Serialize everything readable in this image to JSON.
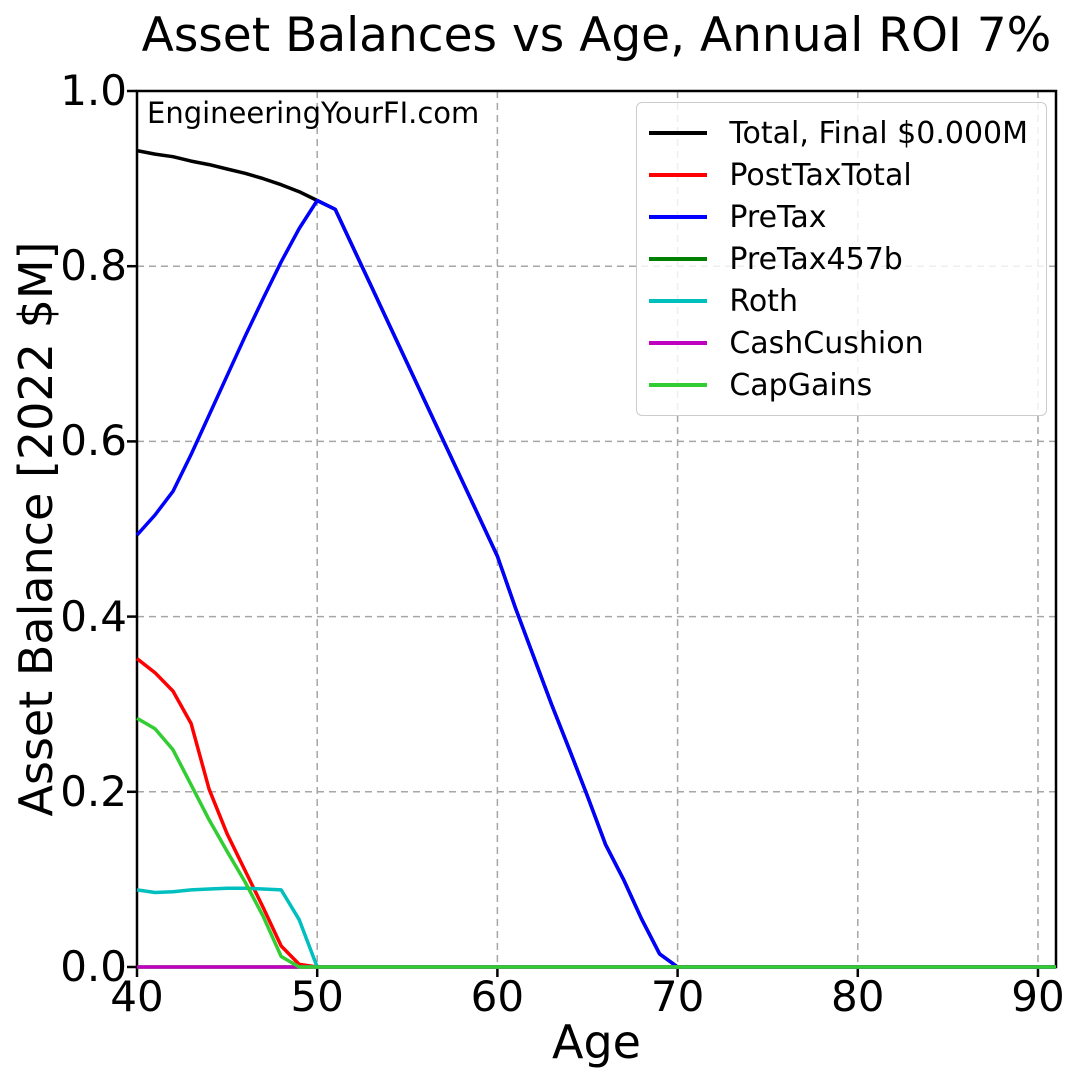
{
  "title": "Asset Balances vs Age, Annual ROI 7%",
  "watermark": "EngineeringYourFI.com",
  "chart_data": {
    "type": "line",
    "title": "Asset Balances vs Age, Annual ROI 7%",
    "xlabel": "Age",
    "ylabel": "Asset Balance [2022 $M]",
    "xlim": [
      40,
      91
    ],
    "ylim": [
      0,
      1.0
    ],
    "xticks": [
      40,
      50,
      60,
      70,
      80,
      90
    ],
    "yticks": [
      0.0,
      0.2,
      0.4,
      0.6,
      0.8,
      1.0
    ],
    "grid": "dashed",
    "grid_color": "#a6a6a6",
    "axis_color": "#000000",
    "legend_position": "upper right",
    "x": [
      40,
      41,
      42,
      43,
      44,
      45,
      46,
      47,
      48,
      49,
      50,
      51,
      52,
      53,
      54,
      55,
      56,
      57,
      58,
      59,
      60,
      61,
      62,
      63,
      64,
      65,
      66,
      67,
      68,
      69,
      70,
      71,
      72,
      73,
      74,
      75,
      76,
      77,
      78,
      79,
      80,
      81,
      82,
      83,
      84,
      85,
      86,
      87,
      88,
      89,
      90,
      91
    ],
    "series": [
      {
        "name": "Total",
        "label": "Total, Final $0.000M",
        "color": "#000000",
        "values": [
          0.932,
          0.928,
          0.925,
          0.92,
          0.916,
          0.911,
          0.906,
          0.9,
          0.893,
          0.885,
          0.875,
          0.865,
          0.821,
          0.777,
          0.733,
          0.689,
          0.645,
          0.601,
          0.557,
          0.513,
          0.469,
          0.41,
          0.355,
          0.3,
          0.248,
          0.195,
          0.14,
          0.1,
          0.055,
          0.015,
          0,
          0,
          0,
          0,
          0,
          0,
          0,
          0,
          0,
          0,
          0,
          0,
          0,
          0,
          0,
          0,
          0,
          0,
          0,
          0,
          0,
          0
        ]
      },
      {
        "name": "PostTaxTotal",
        "label": "PostTaxTotal",
        "color": "#ff0000",
        "values": [
          0.352,
          0.336,
          0.315,
          0.278,
          0.203,
          0.152,
          0.11,
          0.068,
          0.024,
          0.003,
          0,
          0,
          0,
          0,
          0,
          0,
          0,
          0,
          0,
          0,
          0,
          0,
          0,
          0,
          0,
          0,
          0,
          0,
          0,
          0,
          0,
          0,
          0,
          0,
          0,
          0,
          0,
          0,
          0,
          0,
          0,
          0,
          0,
          0,
          0,
          0,
          0,
          0,
          0,
          0,
          0,
          0
        ]
      },
      {
        "name": "PreTax",
        "label": "PreTax",
        "color": "#0000ff",
        "values": [
          0.493,
          0.516,
          0.543,
          0.585,
          0.63,
          0.675,
          0.72,
          0.763,
          0.805,
          0.843,
          0.875,
          0.865,
          0.821,
          0.777,
          0.733,
          0.689,
          0.645,
          0.601,
          0.557,
          0.513,
          0.469,
          0.41,
          0.355,
          0.3,
          0.248,
          0.195,
          0.14,
          0.1,
          0.055,
          0.015,
          0,
          0,
          0,
          0,
          0,
          0,
          0,
          0,
          0,
          0,
          0,
          0,
          0,
          0,
          0,
          0,
          0,
          0,
          0,
          0,
          0,
          0
        ]
      },
      {
        "name": "PreTax457b",
        "label": "PreTax457b",
        "color": "#008000",
        "values": [
          0,
          0,
          0,
          0,
          0,
          0,
          0,
          0,
          0,
          0,
          0,
          0,
          0,
          0,
          0,
          0,
          0,
          0,
          0,
          0,
          0,
          0,
          0,
          0,
          0,
          0,
          0,
          0,
          0,
          0,
          0,
          0,
          0,
          0,
          0,
          0,
          0,
          0,
          0,
          0,
          0,
          0,
          0,
          0,
          0,
          0,
          0,
          0,
          0,
          0,
          0,
          0
        ]
      },
      {
        "name": "Roth",
        "label": "Roth",
        "color": "#00bfbf",
        "values": [
          0.088,
          0.085,
          0.086,
          0.088,
          0.089,
          0.09,
          0.09,
          0.089,
          0.088,
          0.054,
          0,
          0,
          0,
          0,
          0,
          0,
          0,
          0,
          0,
          0,
          0,
          0,
          0,
          0,
          0,
          0,
          0,
          0,
          0,
          0,
          0,
          0,
          0,
          0,
          0,
          0,
          0,
          0,
          0,
          0,
          0,
          0,
          0,
          0,
          0,
          0,
          0,
          0,
          0,
          0,
          0,
          0
        ]
      },
      {
        "name": "CashCushion",
        "label": "CashCushion",
        "color": "#bf00bf",
        "values": [
          0,
          0,
          0,
          0,
          0,
          0,
          0,
          0,
          0,
          0,
          0,
          0,
          0,
          0,
          0,
          0,
          0,
          0,
          0,
          0,
          0,
          0,
          0,
          0,
          0,
          0,
          0,
          0,
          0,
          0,
          0,
          0,
          0,
          0,
          0,
          0,
          0,
          0,
          0,
          0,
          0,
          0,
          0,
          0,
          0,
          0,
          0,
          0,
          0,
          0,
          0,
          0
        ]
      },
      {
        "name": "CapGains",
        "label": "CapGains",
        "color": "#32cd32",
        "values": [
          0.284,
          0.272,
          0.248,
          0.208,
          0.168,
          0.132,
          0.097,
          0.058,
          0.012,
          0,
          0,
          0,
          0,
          0,
          0,
          0,
          0,
          0,
          0,
          0,
          0,
          0,
          0,
          0,
          0,
          0,
          0,
          0,
          0,
          0,
          0,
          0,
          0,
          0,
          0,
          0,
          0,
          0,
          0,
          0,
          0,
          0,
          0,
          0,
          0,
          0,
          0,
          0,
          0,
          0,
          0,
          0
        ]
      }
    ]
  }
}
